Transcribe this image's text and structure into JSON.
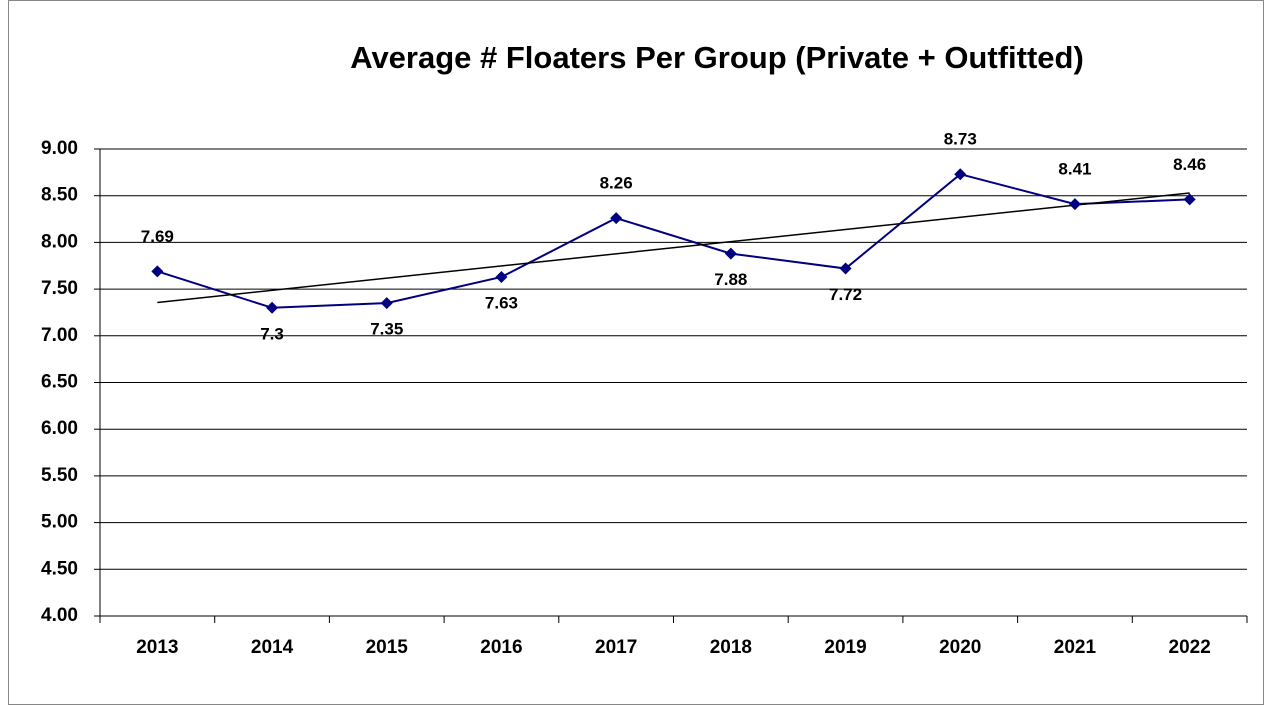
{
  "chart_data": {
    "type": "line",
    "title": "Average # Floaters Per Group (Private + Outfitted)",
    "categories": [
      "2013",
      "2014",
      "2015",
      "2016",
      "2017",
      "2018",
      "2019",
      "2020",
      "2021",
      "2022"
    ],
    "series": [
      {
        "name": "Average # Floaters Per Group",
        "color": "#000080",
        "values": [
          7.69,
          7.3,
          7.35,
          7.63,
          8.26,
          7.88,
          7.72,
          8.73,
          8.41,
          8.46
        ]
      }
    ],
    "ylim": [
      4,
      9
    ],
    "yticks": [
      {
        "value": 4,
        "label": "4.00"
      },
      {
        "value": 4.5,
        "label": "4.50"
      },
      {
        "value": 5,
        "label": "5.00"
      },
      {
        "value": 5.5,
        "label": "5.50"
      },
      {
        "value": 6,
        "label": "6.00"
      },
      {
        "value": 6.5,
        "label": "6.50"
      },
      {
        "value": 7,
        "label": "7.00"
      },
      {
        "value": 7.5,
        "label": "7.50"
      },
      {
        "value": 8,
        "label": "8.00"
      },
      {
        "value": 8.5,
        "label": "8.50"
      },
      {
        "value": 9,
        "label": "9.00"
      }
    ],
    "grid": true,
    "trendline": "linear",
    "trendline_color": "#000000"
  }
}
